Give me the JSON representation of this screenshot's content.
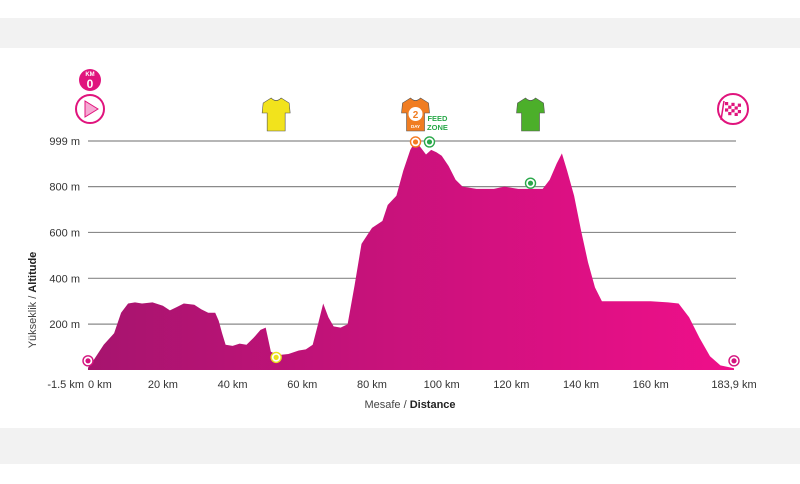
{
  "chart_data": {
    "type": "area",
    "title": "",
    "xlabel": {
      "prefix": "Mesafe / ",
      "bold": "Distance"
    },
    "ylabel": {
      "prefix": "Yükseklik / ",
      "bold": "Altitude"
    },
    "xlim": [
      -1.5,
      183.9
    ],
    "ylim": [
      0,
      999
    ],
    "x_ticks": [
      {
        "value": -1.5,
        "label": "-1.5 km"
      },
      {
        "value": 0,
        "label": "0 km"
      },
      {
        "value": 20,
        "label": "20 km"
      },
      {
        "value": 40,
        "label": "40 km"
      },
      {
        "value": 60,
        "label": "60 km"
      },
      {
        "value": 80,
        "label": "80 km"
      },
      {
        "value": 100,
        "label": "100 km"
      },
      {
        "value": 120,
        "label": "120 km"
      },
      {
        "value": 140,
        "label": "140 km"
      },
      {
        "value": 160,
        "label": "160 km"
      },
      {
        "value": 183.9,
        "label": "183,9 km"
      }
    ],
    "y_gridlines": [
      {
        "value": 200,
        "label": "200 m"
      },
      {
        "value": 400,
        "label": "400 m"
      },
      {
        "value": 600,
        "label": "600 m"
      },
      {
        "value": 800,
        "label": "800 m"
      },
      {
        "value": 999,
        "label": "999 m"
      }
    ],
    "grid": true,
    "color_start": "#a6146e",
    "color_end": "#ef0f8a",
    "profile": [
      [
        -1.5,
        10
      ],
      [
        0,
        40
      ],
      [
        3,
        110
      ],
      [
        6,
        160
      ],
      [
        8,
        250
      ],
      [
        10,
        290
      ],
      [
        12,
        295
      ],
      [
        14,
        290
      ],
      [
        17,
        295
      ],
      [
        20,
        280
      ],
      [
        22,
        260
      ],
      [
        24,
        275
      ],
      [
        26,
        290
      ],
      [
        29,
        285
      ],
      [
        31,
        265
      ],
      [
        33,
        250
      ],
      [
        35,
        250
      ],
      [
        36,
        215
      ],
      [
        37,
        160
      ],
      [
        38,
        110
      ],
      [
        40,
        105
      ],
      [
        42,
        115
      ],
      [
        44,
        110
      ],
      [
        46,
        140
      ],
      [
        48,
        175
      ],
      [
        49.5,
        185
      ],
      [
        51,
        80
      ],
      [
        53,
        65
      ],
      [
        56,
        70
      ],
      [
        59,
        85
      ],
      [
        61,
        90
      ],
      [
        63,
        110
      ],
      [
        64.5,
        200
      ],
      [
        66,
        290
      ],
      [
        67.5,
        230
      ],
      [
        69,
        190
      ],
      [
        71,
        185
      ],
      [
        73,
        200
      ],
      [
        75,
        370
      ],
      [
        77,
        550
      ],
      [
        80,
        620
      ],
      [
        83,
        650
      ],
      [
        84.5,
        720
      ],
      [
        87,
        760
      ],
      [
        89,
        870
      ],
      [
        91,
        960
      ],
      [
        92.5,
        999
      ],
      [
        94,
        970
      ],
      [
        95.5,
        940
      ],
      [
        97,
        960
      ],
      [
        98.5,
        950
      ],
      [
        100,
        935
      ],
      [
        102,
        890
      ],
      [
        104,
        830
      ],
      [
        106,
        800
      ],
      [
        110,
        790
      ],
      [
        115,
        790
      ],
      [
        118,
        800
      ],
      [
        122,
        790
      ],
      [
        126,
        790
      ],
      [
        129,
        790
      ],
      [
        131,
        830
      ],
      [
        133,
        900
      ],
      [
        134.5,
        945
      ],
      [
        136,
        870
      ],
      [
        138,
        760
      ],
      [
        140,
        610
      ],
      [
        142,
        470
      ],
      [
        144,
        360
      ],
      [
        146,
        300
      ],
      [
        150,
        300
      ],
      [
        155,
        300
      ],
      [
        160,
        300
      ],
      [
        165,
        295
      ],
      [
        168,
        290
      ],
      [
        171,
        230
      ],
      [
        174,
        140
      ],
      [
        177,
        60
      ],
      [
        180,
        20
      ],
      [
        183.9,
        8
      ]
    ],
    "markers": [
      {
        "x": -1.5,
        "y": 40,
        "color": "#d4147f"
      },
      {
        "x": 52.5,
        "y": 55,
        "color": "#e9e21c"
      },
      {
        "x": 92.5,
        "y": 995,
        "color": "#f47b20"
      },
      {
        "x": 96.5,
        "y": 995,
        "color": "#2aa84a"
      },
      {
        "x": 125.5,
        "y": 815,
        "color": "#2aa84a"
      },
      {
        "x": 183.9,
        "y": 40,
        "color": "#d4147f"
      }
    ],
    "icons": {
      "km0": {
        "label_top": "KM",
        "label_num": "0",
        "x": -1.5,
        "color": "#e0147d"
      },
      "yellow_jersey": {
        "x": 52.5,
        "color": "#f2e31c"
      },
      "orange_jersey": {
        "x": 92.5,
        "day_num": "2",
        "day_label": "DAY",
        "color": "#f07d22"
      },
      "feed_zone": {
        "x": 96.5,
        "line1": "FEED",
        "line2": "ZONE",
        "color": "#2aa84a"
      },
      "green_jersey": {
        "x": 125.5,
        "color": "#4caf2a"
      },
      "finish": {
        "x": 183.9,
        "color": "#e0147d"
      }
    }
  }
}
